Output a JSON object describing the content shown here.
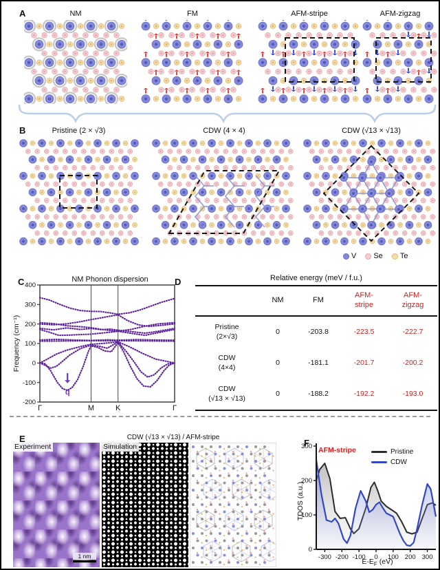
{
  "colors": {
    "v_fill": "#8388d9",
    "v_stroke": "#666bc4",
    "v_core": "#4b51b5",
    "se_fill": "#f3cdd1",
    "se_stroke": "#e0a7ad",
    "se_core": "#e2a0a8",
    "te_fill": "#f6dca8",
    "te_stroke": "#e0ba78",
    "te_core": "#dfae60",
    "spin_up": "#e23028",
    "spin_down": "#2438d8",
    "nm_halo": "#9b9b9b",
    "bond": "#8b93d8",
    "brace": "#b9cfe9",
    "phonon_line": "#5c1f9e",
    "phonon_arrow": "#7a3bbd",
    "pristine_line": "#2b2b2b",
    "cdw_line": "#3246c8",
    "accent_red": "#d42020"
  },
  "panels": {
    "a": {
      "label": "A",
      "items": [
        {
          "title": "NM"
        },
        {
          "title": "FM"
        },
        {
          "title": "AFM-stripe"
        },
        {
          "title": "AFM-zigzag"
        }
      ]
    },
    "b": {
      "label": "B",
      "items": [
        {
          "title": "Pristine (2 × √3)"
        },
        {
          "title": "CDW (4 × 4)"
        },
        {
          "title": "CDW (√13 × √13)"
        }
      ],
      "legend": [
        {
          "label": "V"
        },
        {
          "label": "Se"
        },
        {
          "label": "Te"
        }
      ]
    },
    "c": {
      "label": "C"
    },
    "d": {
      "label": "D"
    },
    "e": {
      "label": "E",
      "title": "CDW (√13 × √13) / AFM-stripe",
      "image_labels": [
        "Experiment",
        "Simulation"
      ],
      "scale_bar": "1 nm"
    },
    "f": {
      "label": "F",
      "annotation": "AFM-stripe",
      "legend": [
        {
          "label": "Pristine"
        },
        {
          "label": "CDW"
        }
      ],
      "xlabel_pre": "E-E",
      "xlabel_sub": "F",
      "xlabel_post": " (eV)"
    }
  },
  "table": {
    "title": "Relative energy (meV / f.u.)",
    "columns": [
      "NM",
      "FM",
      "AFM-stripe",
      "AFM-zigzag"
    ],
    "rows": [
      {
        "label_1": "Pristine",
        "label_2": "(2×√3)",
        "values": [
          "0",
          "-203.8",
          "-223.5",
          "-222.7"
        ]
      },
      {
        "label_1": "CDW",
        "label_2": "(4×4)",
        "values": [
          "0",
          "-181.1",
          "-201.7",
          "-200.2"
        ]
      },
      {
        "label_1": "CDW",
        "label_2": "(√13 × √13)",
        "values": [
          "0",
          "-188.2",
          "-192.2",
          "-193.0"
        ]
      }
    ]
  },
  "chart_data": [
    {
      "id": "phonon",
      "type": "line",
      "title": "NM Phonon dispersion",
      "ylabel": "Frequency (cm⁻¹)",
      "ylim": [
        -200,
        400
      ],
      "yticks": [
        -200,
        -100,
        0,
        100,
        200,
        300,
        400
      ],
      "xticks": [
        "Γ",
        "M",
        "K",
        "Γ"
      ],
      "xtick_pos": [
        0,
        0.38,
        0.58,
        1
      ],
      "annotation": {
        "label": "q",
        "x": 0.205,
        "y": -140
      },
      "branches": [
        [
          [
            0,
            2
          ],
          [
            0.04,
            -4
          ],
          [
            0.08,
            -40
          ],
          [
            0.13,
            -100
          ],
          [
            0.17,
            -132
          ],
          [
            0.205,
            -140
          ],
          [
            0.24,
            -125
          ],
          [
            0.28,
            -85
          ],
          [
            0.32,
            -20
          ],
          [
            0.36,
            60
          ],
          [
            0.38,
            88
          ],
          [
            0.43,
            80
          ],
          [
            0.48,
            62
          ],
          [
            0.53,
            58
          ],
          [
            0.58,
            105
          ],
          [
            0.62,
            60
          ],
          [
            0.67,
            -15
          ],
          [
            0.72,
            -80
          ],
          [
            0.77,
            -118
          ],
          [
            0.82,
            -122
          ],
          [
            0.87,
            -90
          ],
          [
            0.92,
            -40
          ],
          [
            0.96,
            -10
          ],
          [
            1,
            0
          ]
        ],
        [
          [
            0,
            0
          ],
          [
            0.04,
            -12
          ],
          [
            0.08,
            -26
          ],
          [
            0.12,
            -18
          ],
          [
            0.16,
            4
          ],
          [
            0.22,
            40
          ],
          [
            0.3,
            74
          ],
          [
            0.38,
            92
          ],
          [
            0.44,
            86
          ],
          [
            0.5,
            76
          ],
          [
            0.58,
            108
          ],
          [
            0.64,
            60
          ],
          [
            0.7,
            5
          ],
          [
            0.75,
            -45
          ],
          [
            0.8,
            -72
          ],
          [
            0.85,
            -60
          ],
          [
            0.9,
            -25
          ],
          [
            0.95,
            -4
          ],
          [
            1,
            2
          ]
        ],
        [
          [
            0,
            0
          ],
          [
            0.06,
            22
          ],
          [
            0.12,
            45
          ],
          [
            0.2,
            66
          ],
          [
            0.3,
            84
          ],
          [
            0.38,
            96
          ],
          [
            0.46,
            100
          ],
          [
            0.52,
            104
          ],
          [
            0.58,
            108
          ],
          [
            0.66,
            85
          ],
          [
            0.76,
            50
          ],
          [
            0.86,
            20
          ],
          [
            1,
            0
          ]
        ],
        [
          [
            0,
            112
          ],
          [
            0.2,
            113
          ],
          [
            0.38,
            114
          ],
          [
            0.6,
            114
          ],
          [
            0.8,
            113
          ],
          [
            1,
            112
          ]
        ],
        [
          [
            0,
            118
          ],
          [
            0.12,
            121
          ],
          [
            0.25,
            118
          ],
          [
            0.38,
            116
          ],
          [
            0.5,
            119
          ],
          [
            0.58,
            117
          ],
          [
            0.72,
            120
          ],
          [
            0.86,
            118
          ],
          [
            1,
            117
          ]
        ],
        [
          [
            0,
            172
          ],
          [
            0.07,
            158
          ],
          [
            0.14,
            142
          ],
          [
            0.22,
            143
          ],
          [
            0.3,
            146
          ],
          [
            0.38,
            148
          ],
          [
            0.45,
            153
          ],
          [
            0.52,
            158
          ],
          [
            0.58,
            163
          ],
          [
            0.68,
            152
          ],
          [
            0.78,
            142
          ],
          [
            0.88,
            156
          ],
          [
            1,
            172
          ]
        ],
        [
          [
            0,
            178
          ],
          [
            0.1,
            170
          ],
          [
            0.2,
            180
          ],
          [
            0.3,
            172
          ],
          [
            0.38,
            177
          ],
          [
            0.46,
            171
          ],
          [
            0.52,
            174
          ],
          [
            0.58,
            168
          ],
          [
            0.68,
            161
          ],
          [
            0.78,
            153
          ],
          [
            0.88,
            163
          ],
          [
            1,
            178
          ]
        ],
        [
          [
            0,
            200
          ],
          [
            0.1,
            196
          ],
          [
            0.2,
            201
          ],
          [
            0.3,
            212
          ],
          [
            0.38,
            223
          ],
          [
            0.45,
            231
          ],
          [
            0.52,
            240
          ],
          [
            0.58,
            247
          ],
          [
            0.65,
            218
          ],
          [
            0.73,
            196
          ],
          [
            0.81,
            188
          ],
          [
            0.9,
            193
          ],
          [
            1,
            201
          ]
        ],
        [
          [
            0,
            207
          ],
          [
            0.1,
            202
          ],
          [
            0.2,
            191
          ],
          [
            0.3,
            186
          ],
          [
            0.38,
            181
          ],
          [
            0.45,
            173
          ],
          [
            0.52,
            167
          ],
          [
            0.58,
            163
          ],
          [
            0.68,
            173
          ],
          [
            0.78,
            189
          ],
          [
            0.88,
            201
          ],
          [
            1,
            207
          ]
        ],
        [
          [
            0,
            335
          ],
          [
            0.07,
            323
          ],
          [
            0.14,
            303
          ],
          [
            0.22,
            282
          ],
          [
            0.3,
            269
          ],
          [
            0.38,
            265
          ],
          [
            0.45,
            264
          ],
          [
            0.52,
            257
          ],
          [
            0.58,
            250
          ],
          [
            0.66,
            257
          ],
          [
            0.74,
            271
          ],
          [
            0.82,
            291
          ],
          [
            0.9,
            311
          ],
          [
            1,
            331
          ]
        ]
      ]
    },
    {
      "id": "tdos",
      "type": "area",
      "ylabel": "TDOS (a.u.)",
      "xlabel": "E-E_F (eV)",
      "xlim": [
        -350,
        350
      ],
      "ylim": [
        0,
        300
      ],
      "xticks": [
        -300,
        -200,
        -100,
        0,
        100,
        200,
        300
      ],
      "yticks": [
        0,
        100,
        200,
        300
      ],
      "annotation": "AFM-stripe",
      "legend_position": "top-right",
      "series": [
        {
          "name": "Pristine",
          "x": [
            -350,
            -330,
            -300,
            -270,
            -240,
            -210,
            -180,
            -150,
            -130,
            -100,
            -60,
            -30,
            -10,
            10,
            30,
            60,
            90,
            120,
            150,
            180,
            210,
            240,
            270,
            300,
            330,
            350
          ],
          "y": [
            200,
            232,
            250,
            205,
            110,
            90,
            92,
            60,
            46,
            60,
            120,
            180,
            195,
            170,
            140,
            125,
            115,
            105,
            80,
            50,
            45,
            50,
            90,
            130,
            135,
            128
          ]
        },
        {
          "name": "CDW",
          "x": [
            -350,
            -320,
            -290,
            -260,
            -240,
            -220,
            -190,
            -170,
            -150,
            -120,
            -90,
            -60,
            -40,
            -20,
            0,
            20,
            40,
            60,
            80,
            100,
            120,
            140,
            160,
            180,
            200,
            220,
            240,
            270,
            300,
            320,
            350
          ],
          "y": [
            260,
            160,
            85,
            80,
            90,
            75,
            30,
            18,
            40,
            120,
            170,
            140,
            108,
            115,
            130,
            137,
            120,
            105,
            100,
            95,
            70,
            45,
            25,
            12,
            10,
            20,
            60,
            130,
            190,
            175,
            95
          ]
        }
      ]
    }
  ]
}
